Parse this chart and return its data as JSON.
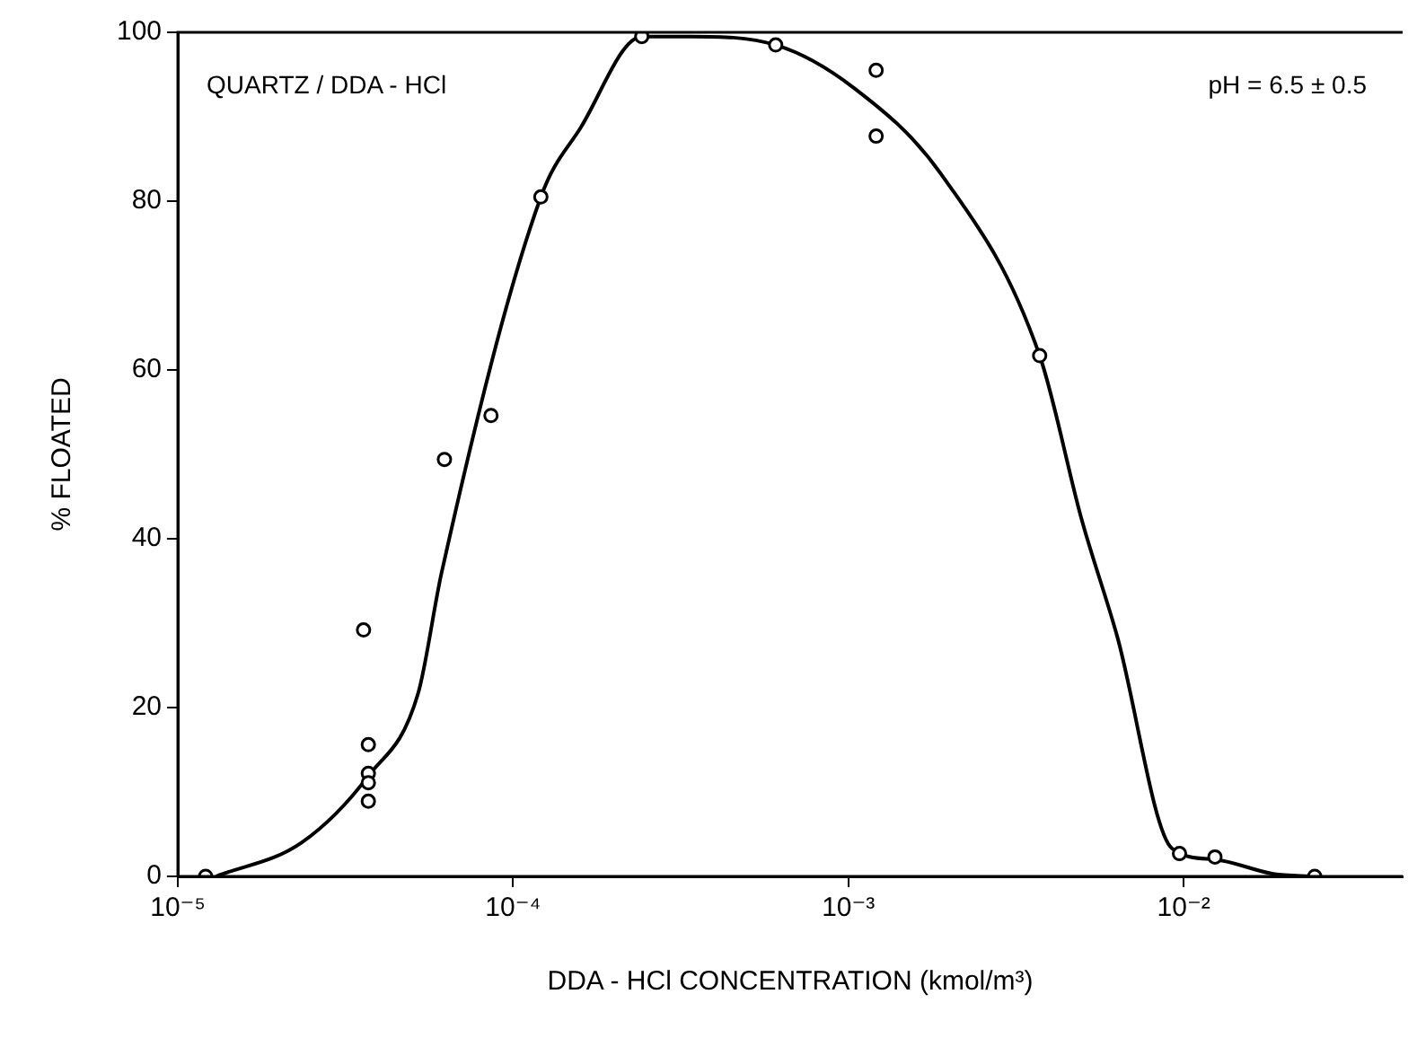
{
  "chart_data": {
    "type": "scatter",
    "xlabel": "DDA - HCl CONCENTRATION (kmol/m³)",
    "ylabel": "% FLOATED",
    "log": "x",
    "grid": false,
    "legend": false,
    "marker": "circle",
    "xlim": [
      1e-05,
      0.045
    ],
    "xticks": [
      {
        "value": 1e-05,
        "label": "10⁻⁵"
      },
      {
        "value": 0.0001,
        "label": "10⁻⁴"
      },
      {
        "value": 0.001,
        "label": "10⁻³"
      },
      {
        "value": 0.01,
        "label": "10⁻²"
      }
    ],
    "ylim": [
      0,
      100
    ],
    "yticks": [
      0,
      20,
      40,
      60,
      80,
      100
    ],
    "annotations": [
      "QUARTZ / DDA - HCl",
      "pH = 6.5 ± 0.5"
    ],
    "series": [
      {
        "color": "#000000",
        "x": [
          1.21e-05,
          3.58e-05,
          3.7e-05,
          3.7e-05,
          3.7e-05,
          3.7e-05,
          6.24e-05,
          8.59e-05,
          0.000121,
          0.000242,
          0.000607,
          0.00121,
          0.00121,
          0.00372,
          0.00972,
          0.0124,
          0.0246
        ],
        "values": [
          0,
          29.2,
          15.6,
          12.2,
          11.1,
          8.9,
          49.4,
          54.6,
          80.5,
          99.5,
          98.5,
          95.5,
          87.7,
          61.7,
          2.7,
          2.3,
          0
        ]
      },
      {
        "type": "line",
        "color": "#000000",
        "marker": "none",
        "x": [
          1.3e-05,
          2.34e-05,
          3.7e-05,
          5.21e-05,
          6.12e-05,
          0.000121,
          0.000159,
          0.000242,
          0.000339,
          0.000607,
          0.00104,
          0.00189,
          0.00372,
          0.00497,
          0.00633,
          0.00924,
          0.0124,
          0.0185,
          0.0246
        ],
        "values": [
          0,
          4,
          11.9,
          21.7,
          36,
          80.5,
          88.7,
          99.5,
          99.5,
          98.5,
          93.4,
          83.2,
          61.7,
          42.2,
          28.5,
          3.3,
          2,
          0.3,
          0
        ]
      }
    ]
  }
}
